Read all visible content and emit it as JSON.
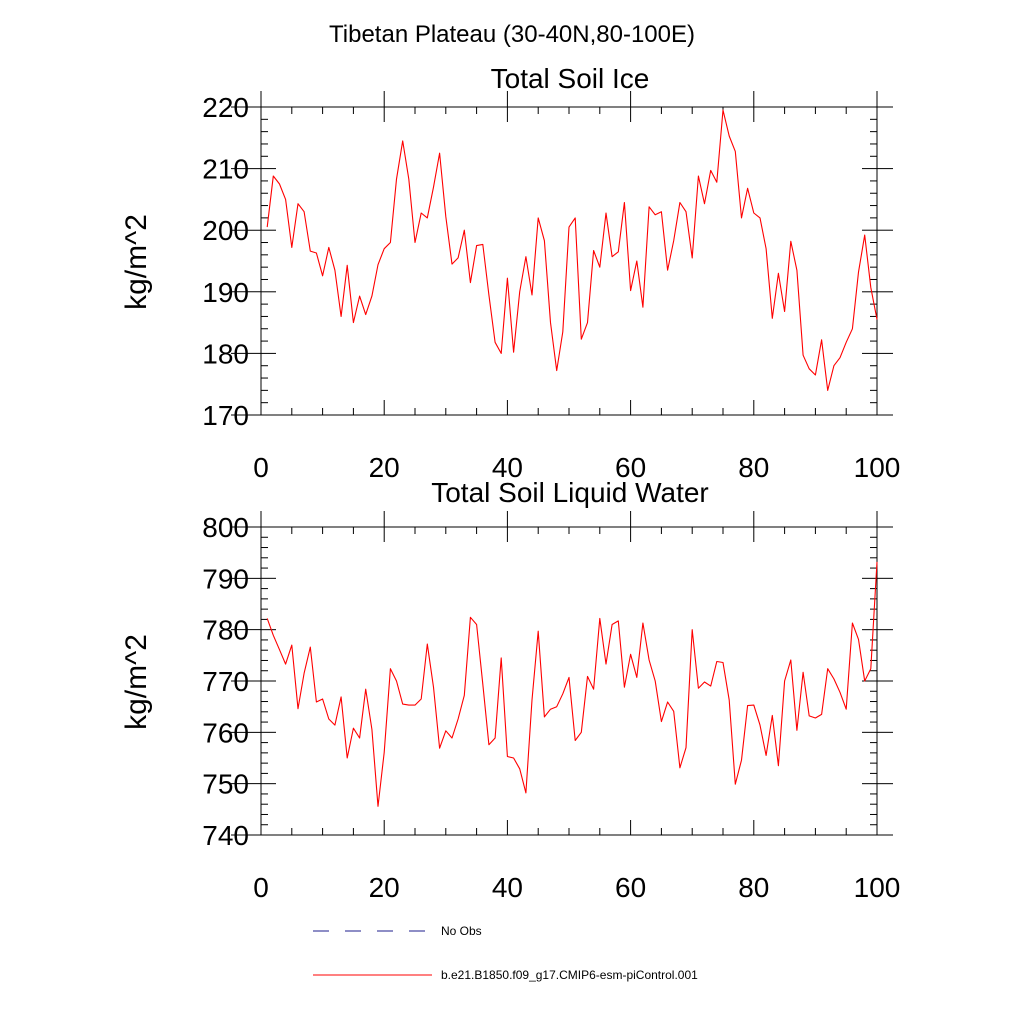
{
  "figure": {
    "suptitle": "Tibetan Plateau (30-40N,80-100E)"
  },
  "chart_data": [
    {
      "type": "line",
      "title": "Total Soil Ice",
      "xlabel": "",
      "ylabel": "kg/m^2",
      "xlim": [
        0,
        100
      ],
      "ylim": [
        170,
        220
      ],
      "x_ticks": [
        0,
        20,
        40,
        60,
        80,
        100
      ],
      "y_ticks": [
        170,
        180,
        190,
        200,
        210,
        220
      ],
      "x_tick_labels": [
        "0",
        "20",
        "40",
        "60",
        "80",
        "100"
      ],
      "y_tick_labels": [
        "170",
        "180",
        "190",
        "200",
        "210",
        "220"
      ],
      "series": [
        {
          "name": "b.e21.B1850.f09_g17.CMIP6-esm-piControl.001",
          "color": "#ff0000",
          "x": [
            1,
            2,
            3,
            4,
            5,
            6,
            7,
            8,
            9,
            10,
            11,
            12,
            13,
            14,
            15,
            16,
            17,
            18,
            19,
            20,
            21,
            22,
            23,
            24,
            25,
            26,
            27,
            28,
            29,
            30,
            31,
            32,
            33,
            34,
            35,
            36,
            37,
            38,
            39,
            40,
            41,
            42,
            43,
            44,
            45,
            46,
            47,
            48,
            49,
            50,
            51,
            52,
            53,
            54,
            55,
            56,
            57,
            58,
            59,
            60,
            61,
            62,
            63,
            64,
            65,
            66,
            67,
            68,
            69,
            70,
            71,
            72,
            73,
            74,
            75,
            76,
            77,
            78,
            79,
            80,
            81,
            82,
            83,
            84,
            85,
            86,
            87,
            88,
            89,
            90,
            91,
            92,
            93,
            94,
            95,
            96,
            97,
            98,
            99,
            100
          ],
          "values": [
            200.5,
            208.8,
            207.5,
            205.0,
            197.2,
            204.3,
            203.0,
            196.6,
            196.3,
            192.6,
            197.2,
            193.5,
            186.0,
            194.3,
            185.0,
            189.3,
            186.3,
            189.3,
            194.4,
            197.0,
            198.0,
            208.3,
            214.5,
            208.3,
            198.0,
            202.8,
            202.0,
            207.0,
            212.5,
            202.2,
            194.5,
            195.5,
            200.0,
            191.5,
            197.5,
            197.7,
            189.5,
            181.8,
            180.0,
            192.2,
            180.2,
            190.0,
            195.7,
            189.5,
            202.0,
            198.3,
            185.0,
            177.2,
            183.5,
            200.5,
            202.0,
            182.3,
            185.0,
            196.7,
            194.0,
            202.8,
            195.7,
            196.5,
            204.5,
            190.2,
            195.0,
            187.5,
            203.8,
            202.5,
            203.0,
            193.5,
            198.3,
            204.5,
            203.0,
            195.5,
            208.8,
            204.3,
            209.7,
            207.8,
            219.5,
            215.3,
            212.8,
            202.0,
            206.8,
            202.8,
            202.0,
            197.0,
            185.7,
            193.0,
            186.8,
            198.2,
            193.5,
            179.7,
            177.5,
            176.5,
            182.2,
            174.0,
            178.0,
            179.3,
            181.8,
            184.0,
            193.2,
            199.2,
            190.7,
            185.5
          ]
        }
      ]
    },
    {
      "type": "line",
      "title": "Total Soil Liquid Water",
      "xlabel": "",
      "ylabel": "kg/m^2",
      "xlim": [
        0,
        100
      ],
      "ylim": [
        740,
        800
      ],
      "x_ticks": [
        0,
        20,
        40,
        60,
        80,
        100
      ],
      "y_ticks": [
        740,
        750,
        760,
        770,
        780,
        790,
        800
      ],
      "x_tick_labels": [
        "0",
        "20",
        "40",
        "60",
        "80",
        "100"
      ],
      "y_tick_labels": [
        "740",
        "750",
        "760",
        "770",
        "780",
        "790",
        "800"
      ],
      "series": [
        {
          "name": "b.e21.B1850.f09_g17.CMIP6-esm-piControl.001",
          "color": "#ff0000",
          "x": [
            1,
            2,
            3,
            4,
            5,
            6,
            7,
            8,
            9,
            10,
            11,
            12,
            13,
            14,
            15,
            16,
            17,
            18,
            19,
            20,
            21,
            22,
            23,
            24,
            25,
            26,
            27,
            28,
            29,
            30,
            31,
            32,
            33,
            34,
            35,
            36,
            37,
            38,
            39,
            40,
            41,
            42,
            43,
            44,
            45,
            46,
            47,
            48,
            49,
            50,
            51,
            52,
            53,
            54,
            55,
            56,
            57,
            58,
            59,
            60,
            61,
            62,
            63,
            64,
            65,
            66,
            67,
            68,
            69,
            70,
            71,
            72,
            73,
            74,
            75,
            76,
            77,
            78,
            79,
            80,
            81,
            82,
            83,
            84,
            85,
            86,
            87,
            88,
            89,
            90,
            91,
            92,
            93,
            94,
            95,
            96,
            97,
            98,
            99,
            100
          ],
          "values": [
            782.2,
            778.9,
            776.1,
            773.3,
            777.0,
            764.6,
            771.5,
            776.6,
            765.9,
            766.5,
            762.6,
            761.4,
            766.9,
            755.0,
            760.8,
            758.9,
            768.4,
            760.6,
            745.6,
            756.1,
            772.4,
            770.0,
            765.5,
            765.3,
            765.3,
            766.5,
            777.2,
            768.8,
            756.9,
            760.3,
            758.9,
            762.6,
            767.2,
            782.4,
            781.0,
            769.4,
            757.6,
            758.9,
            774.5,
            755.3,
            755.0,
            752.9,
            748.2,
            766.3,
            779.7,
            763.0,
            764.5,
            765.0,
            767.5,
            770.7,
            758.4,
            760.0,
            770.9,
            768.4,
            782.2,
            773.3,
            781.0,
            781.7,
            768.8,
            775.2,
            770.7,
            781.3,
            774.1,
            770.0,
            762.1,
            765.9,
            764.1,
            753.1,
            757.0,
            780.0,
            768.6,
            769.8,
            769.0,
            773.8,
            773.6,
            766.3,
            749.9,
            754.6,
            765.2,
            765.3,
            761.4,
            755.5,
            763.3,
            753.5,
            770.0,
            774.1,
            760.4,
            771.7,
            763.2,
            762.8,
            763.5,
            772.4,
            770.4,
            767.8,
            764.5,
            781.3,
            778.1,
            770.0,
            772.4,
            793.2
          ]
        }
      ]
    }
  ],
  "legend": [
    {
      "label": "No Obs",
      "style": "dashed",
      "color": "#1e1e8c"
    },
    {
      "label": "b.e21.B1850.f09_g17.CMIP6-esm-piControl.001",
      "style": "solid",
      "color": "#ff0000"
    }
  ]
}
